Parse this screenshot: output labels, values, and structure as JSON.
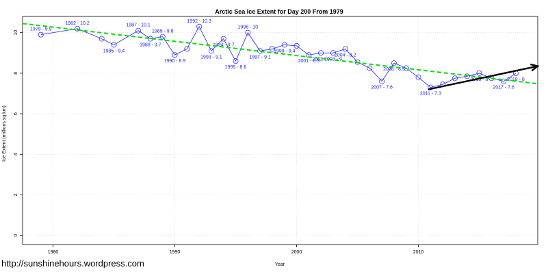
{
  "chart_data": {
    "type": "line",
    "title": "Arctic Sea Ice Extent for Day 200 From 1979",
    "xlabel": "Year",
    "ylabel": "Ice Extent (millions sq km)",
    "xlim": [
      1977.5,
      2019.8
    ],
    "ylim": [
      -0.45,
      10.8
    ],
    "x_ticks": [
      1980,
      1990,
      2000,
      2010
    ],
    "y_ticks": [
      0,
      2,
      4,
      6,
      8,
      10
    ],
    "grid": true,
    "colors": {
      "series": "#3333ff",
      "trend": "#00dd00",
      "arrow": "#000000"
    },
    "series": [
      {
        "x": [
          1979,
          1982,
          1984,
          1985,
          1987,
          1988,
          1989,
          1990,
          1991,
          1992,
          1993,
          1994,
          1995,
          1996,
          1997,
          1998,
          1999,
          2000,
          2001,
          2002,
          2003,
          2004,
          2005,
          2006,
          2007,
          2008,
          2009,
          2010,
          2011,
          2012,
          2013,
          2014,
          2015,
          2016,
          2017,
          2018
        ],
        "values": [
          9.9,
          10.2,
          9.7,
          9.4,
          10.1,
          9.7,
          9.8,
          8.9,
          9.2,
          10.3,
          9.1,
          9.7,
          8.6,
          10.0,
          9.1,
          9.2,
          9.4,
          9.35,
          8.9,
          9.0,
          9.0,
          9.2,
          8.55,
          8.25,
          7.6,
          8.5,
          8.25,
          7.8,
          7.3,
          7.45,
          7.75,
          7.85,
          8.0,
          7.75,
          7.6,
          8.0
        ]
      }
    ],
    "point_labels": [
      {
        "x": 1979,
        "y": 9.9,
        "text": "1979 - 9.9"
      },
      {
        "x": 1982,
        "y": 10.2,
        "text": "1982 - 10.2"
      },
      {
        "x": 1985,
        "y": 9.4,
        "text": "1985 - 9.4"
      },
      {
        "x": 1987,
        "y": 10.1,
        "text": "1987 - 10.1"
      },
      {
        "x": 1988,
        "y": 9.7,
        "text": "1988 - 9.7"
      },
      {
        "x": 1989,
        "y": 9.8,
        "text": "1989 - 9.8"
      },
      {
        "x": 1990,
        "y": 8.9,
        "text": "1990 - 8.9"
      },
      {
        "x": 1992,
        "y": 10.3,
        "text": "1992 - 10.3"
      },
      {
        "x": 1993,
        "y": 9.1,
        "text": "1993 - 9.1"
      },
      {
        "x": 1994,
        "y": 9.7,
        "text": "1994 - 9.7"
      },
      {
        "x": 1995,
        "y": 8.6,
        "text": "1995 - 8.6"
      },
      {
        "x": 1996,
        "y": 10.0,
        "text": "1996 - 10"
      },
      {
        "x": 1997,
        "y": 9.1,
        "text": "1997 - 9.1"
      },
      {
        "x": 1999,
        "y": 9.4,
        "text": "1999 - 9.4"
      },
      {
        "x": 2001,
        "y": 8.9,
        "text": "2001 - 8.9"
      },
      {
        "x": 2002,
        "y": 9.0,
        "text": "2002 - 9"
      },
      {
        "x": 2003,
        "y": 9.0,
        "text": "2003 - 9"
      },
      {
        "x": 2004,
        "y": 9.2,
        "text": "2004 - 9.2"
      },
      {
        "x": 2007,
        "y": 7.6,
        "text": "2007 - 7.6"
      },
      {
        "x": 2008,
        "y": 8.5,
        "text": "2008 - 8.5"
      },
      {
        "x": 2011,
        "y": 7.3,
        "text": "2011 - 7.3"
      },
      {
        "x": 2015,
        "y": 8.0,
        "text": "2015 - 8"
      },
      {
        "x": 2017,
        "y": 7.6,
        "text": "2017 - 7.6"
      },
      {
        "x": 2018,
        "y": 8.0,
        "text": "2018 - 8"
      }
    ],
    "trend_line": {
      "x": [
        1977.5,
        2019.8
      ],
      "y": [
        10.45,
        7.48
      ]
    },
    "arrow": {
      "x": [
        2010.8,
        2019.8
      ],
      "y": [
        7.2,
        8.35
      ]
    }
  },
  "source_text": "http://sunshinehours.wordpress.com"
}
